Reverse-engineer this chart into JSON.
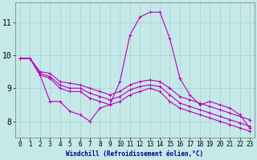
{
  "xlabel": "Windchill (Refroidissement éolien,°C)",
  "background_color": "#c5e8e8",
  "line_color": "#bb00bb",
  "grid_color": "#a8d0d0",
  "xlim": [
    -0.5,
    23.5
  ],
  "ylim": [
    7.5,
    11.6
  ],
  "yticks": [
    8,
    9,
    10,
    11
  ],
  "xticks": [
    0,
    1,
    2,
    3,
    4,
    5,
    6,
    7,
    8,
    9,
    10,
    11,
    12,
    13,
    14,
    15,
    16,
    17,
    18,
    19,
    20,
    21,
    22,
    23
  ],
  "lines": [
    {
      "x": [
        0,
        1,
        2,
        3,
        4,
        5,
        6,
        7,
        8,
        9,
        10,
        11,
        12,
        13,
        14,
        15,
        16,
        17,
        18,
        19,
        20,
        21,
        22,
        23
      ],
      "y": [
        9.9,
        9.9,
        9.4,
        8.6,
        8.6,
        8.3,
        8.2,
        8.0,
        8.4,
        8.5,
        9.2,
        10.6,
        11.15,
        11.3,
        11.3,
        10.5,
        9.3,
        8.8,
        8.5,
        8.6,
        8.5,
        8.4,
        8.2,
        7.8
      ]
    },
    {
      "x": [
        0,
        1,
        2,
        3,
        4,
        5,
        6,
        7,
        8,
        9,
        10,
        11,
        12,
        13,
        14,
        15,
        16,
        17,
        18,
        19,
        20,
        21,
        22,
        23
      ],
      "y": [
        9.9,
        9.9,
        9.4,
        9.3,
        9.0,
        8.9,
        8.9,
        8.7,
        8.6,
        8.5,
        8.6,
        8.8,
        8.9,
        9.0,
        8.9,
        8.6,
        8.4,
        8.3,
        8.2,
        8.1,
        8.0,
        7.9,
        7.8,
        7.7
      ]
    },
    {
      "x": [
        0,
        1,
        2,
        3,
        4,
        5,
        6,
        7,
        8,
        9,
        10,
        11,
        12,
        13,
        14,
        15,
        16,
        17,
        18,
        19,
        20,
        21,
        22,
        23
      ],
      "y": [
        9.9,
        9.9,
        9.45,
        9.35,
        9.1,
        9.0,
        9.0,
        8.85,
        8.75,
        8.65,
        8.75,
        8.95,
        9.05,
        9.1,
        9.05,
        8.8,
        8.55,
        8.45,
        8.35,
        8.25,
        8.15,
        8.05,
        7.95,
        7.85
      ]
    },
    {
      "x": [
        0,
        1,
        2,
        3,
        4,
        5,
        6,
        7,
        8,
        9,
        10,
        11,
        12,
        13,
        14,
        15,
        16,
        17,
        18,
        19,
        20,
        21,
        22,
        23
      ],
      "y": [
        9.9,
        9.9,
        9.5,
        9.45,
        9.2,
        9.15,
        9.1,
        9.0,
        8.9,
        8.8,
        8.9,
        9.1,
        9.2,
        9.25,
        9.2,
        9.0,
        8.75,
        8.65,
        8.55,
        8.45,
        8.35,
        8.25,
        8.15,
        8.05
      ]
    }
  ],
  "marker": "+",
  "markersize": 3,
  "linewidth": 0.8,
  "xlabel_color": "#000088",
  "xlabel_fontsize": 5.5,
  "tick_fontsize": 5.5,
  "ytick_fontsize": 7
}
